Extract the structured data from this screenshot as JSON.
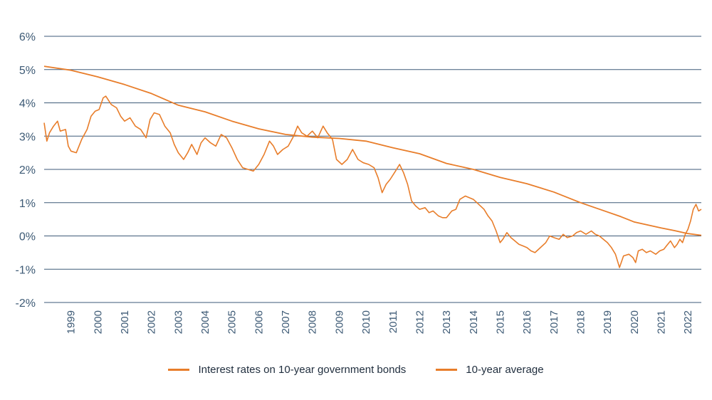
{
  "chart_data": {
    "type": "line",
    "title": "",
    "xlabel": "",
    "ylabel": "",
    "ylim": [
      -2,
      6
    ],
    "xlim": [
      1998.0,
      2022.5
    ],
    "yticks": [
      6,
      5,
      4,
      3,
      2,
      1,
      0,
      -1,
      -2
    ],
    "ytick_labels": [
      "6%",
      "5%",
      "4%",
      "3%",
      "2%",
      "1%",
      "0%",
      "-1%",
      "-2%"
    ],
    "xtick_labels": [
      "1999",
      "2000",
      "2001",
      "2002",
      "2003",
      "2004",
      "2005",
      "2006",
      "2007",
      "2008",
      "2009",
      "2010",
      "2011",
      "2012",
      "2013",
      "2014",
      "2015",
      "2016",
      "2017",
      "2018",
      "2019",
      "2020",
      "2021",
      "2022"
    ],
    "grid": true,
    "legend_position": "bottom",
    "series": [
      {
        "name": "Interest rates on 10-year government bonds",
        "color": "#e87d2a",
        "points": [
          [
            1998.0,
            3.4
          ],
          [
            1998.1,
            2.85
          ],
          [
            1998.2,
            3.1
          ],
          [
            1998.35,
            3.3
          ],
          [
            1998.5,
            3.45
          ],
          [
            1998.6,
            3.15
          ],
          [
            1998.8,
            3.2
          ],
          [
            1998.9,
            2.7
          ],
          [
            1999.0,
            2.55
          ],
          [
            1999.2,
            2.5
          ],
          [
            1999.4,
            2.9
          ],
          [
            1999.6,
            3.2
          ],
          [
            1999.75,
            3.6
          ],
          [
            1999.9,
            3.75
          ],
          [
            2000.05,
            3.8
          ],
          [
            2000.2,
            4.15
          ],
          [
            2000.3,
            4.2
          ],
          [
            2000.5,
            3.95
          ],
          [
            2000.7,
            3.85
          ],
          [
            2000.85,
            3.6
          ],
          [
            2001.0,
            3.45
          ],
          [
            2001.2,
            3.55
          ],
          [
            2001.4,
            3.3
          ],
          [
            2001.6,
            3.2
          ],
          [
            2001.8,
            2.95
          ],
          [
            2001.95,
            3.5
          ],
          [
            2002.1,
            3.7
          ],
          [
            2002.3,
            3.65
          ],
          [
            2002.5,
            3.3
          ],
          [
            2002.7,
            3.1
          ],
          [
            2002.85,
            2.75
          ],
          [
            2003.0,
            2.5
          ],
          [
            2003.2,
            2.3
          ],
          [
            2003.35,
            2.5
          ],
          [
            2003.5,
            2.75
          ],
          [
            2003.7,
            2.45
          ],
          [
            2003.85,
            2.8
          ],
          [
            2004.0,
            2.95
          ],
          [
            2004.2,
            2.8
          ],
          [
            2004.4,
            2.7
          ],
          [
            2004.6,
            3.05
          ],
          [
            2004.8,
            2.95
          ],
          [
            2005.0,
            2.65
          ],
          [
            2005.2,
            2.3
          ],
          [
            2005.4,
            2.05
          ],
          [
            2005.6,
            2.0
          ],
          [
            2005.8,
            1.95
          ],
          [
            2006.0,
            2.15
          ],
          [
            2006.2,
            2.45
          ],
          [
            2006.4,
            2.85
          ],
          [
            2006.55,
            2.7
          ],
          [
            2006.7,
            2.45
          ],
          [
            2006.9,
            2.6
          ],
          [
            2007.1,
            2.7
          ],
          [
            2007.3,
            3.0
          ],
          [
            2007.45,
            3.3
          ],
          [
            2007.6,
            3.1
          ],
          [
            2007.8,
            3.0
          ],
          [
            2008.0,
            3.15
          ],
          [
            2008.2,
            2.95
          ],
          [
            2008.4,
            3.3
          ],
          [
            2008.55,
            3.1
          ],
          [
            2008.75,
            2.9
          ],
          [
            2008.9,
            2.3
          ],
          [
            2009.1,
            2.15
          ],
          [
            2009.3,
            2.3
          ],
          [
            2009.5,
            2.6
          ],
          [
            2009.7,
            2.3
          ],
          [
            2009.9,
            2.2
          ],
          [
            2010.1,
            2.15
          ],
          [
            2010.3,
            2.05
          ],
          [
            2010.45,
            1.75
          ],
          [
            2010.6,
            1.3
          ],
          [
            2010.75,
            1.55
          ],
          [
            2010.9,
            1.7
          ],
          [
            2011.1,
            1.95
          ],
          [
            2011.25,
            2.15
          ],
          [
            2011.4,
            1.9
          ],
          [
            2011.55,
            1.55
          ],
          [
            2011.7,
            1.05
          ],
          [
            2011.85,
            0.9
          ],
          [
            2012.0,
            0.8
          ],
          [
            2012.2,
            0.85
          ],
          [
            2012.35,
            0.7
          ],
          [
            2012.5,
            0.75
          ],
          [
            2012.7,
            0.6
          ],
          [
            2012.85,
            0.55
          ],
          [
            2013.0,
            0.55
          ],
          [
            2013.2,
            0.75
          ],
          [
            2013.35,
            0.8
          ],
          [
            2013.5,
            1.1
          ],
          [
            2013.7,
            1.2
          ],
          [
            2013.85,
            1.15
          ],
          [
            2014.0,
            1.1
          ],
          [
            2014.2,
            0.95
          ],
          [
            2014.4,
            0.8
          ],
          [
            2014.55,
            0.6
          ],
          [
            2014.7,
            0.45
          ],
          [
            2014.85,
            0.15
          ],
          [
            2015.0,
            -0.2
          ],
          [
            2015.1,
            -0.1
          ],
          [
            2015.25,
            0.1
          ],
          [
            2015.4,
            -0.05
          ],
          [
            2015.55,
            -0.15
          ],
          [
            2015.7,
            -0.25
          ],
          [
            2015.85,
            -0.3
          ],
          [
            2016.0,
            -0.35
          ],
          [
            2016.15,
            -0.45
          ],
          [
            2016.3,
            -0.5
          ],
          [
            2016.5,
            -0.35
          ],
          [
            2016.7,
            -0.2
          ],
          [
            2016.85,
            0.0
          ],
          [
            2017.0,
            -0.05
          ],
          [
            2017.2,
            -0.1
          ],
          [
            2017.35,
            0.05
          ],
          [
            2017.5,
            -0.05
          ],
          [
            2017.7,
            0.0
          ],
          [
            2017.85,
            0.1
          ],
          [
            2018.0,
            0.15
          ],
          [
            2018.2,
            0.05
          ],
          [
            2018.4,
            0.15
          ],
          [
            2018.55,
            0.05
          ],
          [
            2018.7,
            0.0
          ],
          [
            2018.85,
            -0.1
          ],
          [
            2019.0,
            -0.2
          ],
          [
            2019.15,
            -0.35
          ],
          [
            2019.3,
            -0.55
          ],
          [
            2019.45,
            -0.95
          ],
          [
            2019.6,
            -0.6
          ],
          [
            2019.8,
            -0.55
          ],
          [
            2019.95,
            -0.65
          ],
          [
            2020.05,
            -0.8
          ],
          [
            2020.15,
            -0.45
          ],
          [
            2020.3,
            -0.4
          ],
          [
            2020.45,
            -0.5
          ],
          [
            2020.6,
            -0.45
          ],
          [
            2020.8,
            -0.55
          ],
          [
            2020.95,
            -0.45
          ],
          [
            2021.1,
            -0.4
          ],
          [
            2021.2,
            -0.3
          ],
          [
            2021.35,
            -0.15
          ],
          [
            2021.5,
            -0.35
          ],
          [
            2021.6,
            -0.25
          ],
          [
            2021.7,
            -0.1
          ],
          [
            2021.8,
            -0.2
          ],
          [
            2021.9,
            0.05
          ],
          [
            2022.0,
            0.2
          ],
          [
            2022.1,
            0.45
          ],
          [
            2022.2,
            0.8
          ],
          [
            2022.3,
            0.95
          ],
          [
            2022.4,
            0.75
          ],
          [
            2022.5,
            0.8
          ]
        ]
      },
      {
        "name": "10-year average",
        "color": "#e87d2a",
        "points": [
          [
            1998.0,
            5.1
          ],
          [
            1999.0,
            4.98
          ],
          [
            2000.0,
            4.78
          ],
          [
            2001.0,
            4.55
          ],
          [
            2002.0,
            4.28
          ],
          [
            2003.0,
            3.93
          ],
          [
            2004.0,
            3.73
          ],
          [
            2005.0,
            3.45
          ],
          [
            2006.0,
            3.22
          ],
          [
            2007.0,
            3.05
          ],
          [
            2008.0,
            2.97
          ],
          [
            2009.0,
            2.93
          ],
          [
            2010.0,
            2.85
          ],
          [
            2011.0,
            2.65
          ],
          [
            2012.0,
            2.47
          ],
          [
            2013.0,
            2.18
          ],
          [
            2014.0,
            2.0
          ],
          [
            2015.0,
            1.76
          ],
          [
            2016.0,
            1.57
          ],
          [
            2017.0,
            1.32
          ],
          [
            2018.0,
            1.0
          ],
          [
            2019.0,
            0.72
          ],
          [
            2019.5,
            0.58
          ],
          [
            2020.0,
            0.42
          ],
          [
            2021.0,
            0.24
          ],
          [
            2021.5,
            0.16
          ],
          [
            2022.0,
            0.07
          ],
          [
            2022.5,
            0.02
          ]
        ]
      }
    ]
  }
}
